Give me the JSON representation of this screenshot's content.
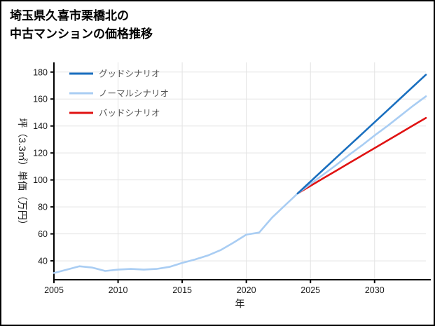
{
  "title": {
    "line1": "埼玉県久喜市栗橋北の",
    "line2": "中古マンションの価格推移"
  },
  "chart_data": {
    "type": "line",
    "title": "埼玉県久喜市栗橋北の中古マンションの価格推移",
    "xlabel": "年",
    "ylabel": "坪（3.3㎡）単価（万円）",
    "xlim": [
      2005,
      2034
    ],
    "ylim": [
      26,
      183
    ],
    "x_ticks": [
      2005,
      2010,
      2015,
      2020,
      2025,
      2030
    ],
    "y_ticks": [
      40,
      60,
      80,
      100,
      120,
      140,
      160,
      180
    ],
    "grid": true,
    "legend_position": "upper-left",
    "colors": {
      "grid": "#e3e3e3",
      "axis": "#000000"
    },
    "series": [
      {
        "id": "good",
        "name": "グッドシナリオ",
        "color": "#1a6fbf",
        "x": [
          2024,
          2025,
          2026,
          2027,
          2028,
          2029,
          2030,
          2031,
          2032,
          2033,
          2034
        ],
        "values": [
          90,
          98.8,
          107.6,
          116.4,
          125.2,
          134,
          142.8,
          151.6,
          160.4,
          169.2,
          178
        ]
      },
      {
        "id": "normal",
        "name": "ノーマルシナリオ",
        "color": "#a9cdf3",
        "x": [
          2005,
          2006,
          2007,
          2008,
          2009,
          2010,
          2011,
          2012,
          2013,
          2014,
          2015,
          2016,
          2017,
          2018,
          2019,
          2020,
          2021,
          2022,
          2023,
          2024,
          2025,
          2026,
          2027,
          2028,
          2029,
          2030,
          2031,
          2032,
          2033,
          2034
        ],
        "values": [
          31,
          33.5,
          36,
          35,
          32.5,
          33.5,
          34,
          33.5,
          34,
          35.5,
          38.5,
          41,
          44,
          48,
          53.5,
          59.5,
          61,
          72,
          81,
          90,
          97,
          104,
          111,
          118.5,
          125.5,
          133,
          140,
          147.5,
          155,
          162
        ]
      },
      {
        "id": "bad",
        "name": "バッドシナリオ",
        "color": "#e01212",
        "x": [
          2024,
          2025,
          2026,
          2027,
          2028,
          2029,
          2030,
          2031,
          2032,
          2033,
          2034
        ],
        "values": [
          90,
          95.6,
          101.2,
          106.8,
          112.4,
          118,
          123.6,
          129.2,
          134.8,
          140.4,
          146
        ]
      }
    ]
  }
}
